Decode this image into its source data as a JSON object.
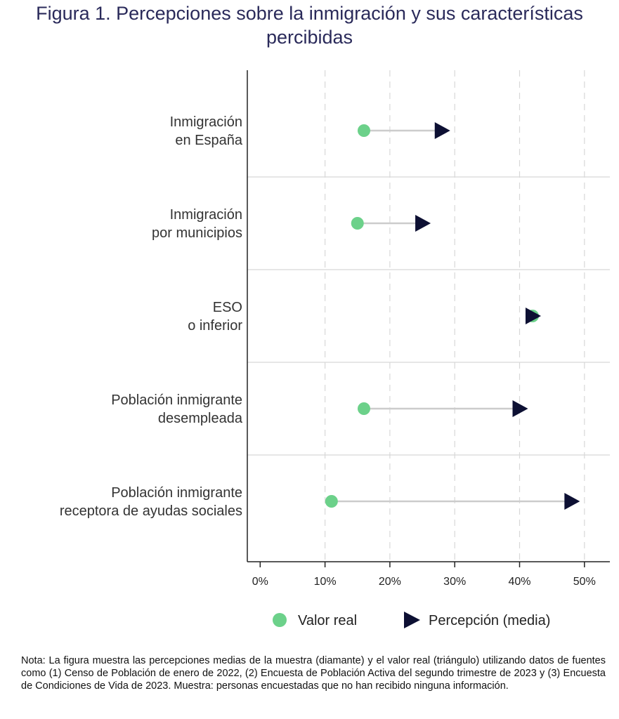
{
  "title": "Figura 1. Percepciones sobre la inmigración y sus características percibidas",
  "note": "Nota: La figura muestra las percepciones medias de la muestra (diamante) y el valor real (triángulo) utilizando datos de fuentes como (1) Censo de Población de enero de 2022, (2) Encuesta de Población Activa del segundo trimestre de 2023 y (3) Encuesta de Condiciones de Vida de 2023. Muestra: personas encuestadas que no han recibido ninguna información.",
  "colors": {
    "real": "#6cd18a",
    "perception": "#0d1033",
    "connector": "#cccccc",
    "title": "#2a2a5a"
  },
  "chart_data": {
    "type": "dumbbell",
    "title": "Figura 1. Percepciones sobre la inmigración y sus características percibidas",
    "xlabel": "",
    "ylabel": "",
    "xlim": [
      0,
      50
    ],
    "xticks": [
      0,
      10,
      20,
      30,
      40,
      50
    ],
    "xtick_labels": [
      "0%",
      "10%",
      "20%",
      "30%",
      "40%",
      "50%"
    ],
    "grid": "vertical dashed",
    "legend_position": "bottom",
    "categories": [
      [
        "Inmigración",
        "en España"
      ],
      [
        "Inmigración",
        "por municipios"
      ],
      [
        "ESO",
        "o inferior"
      ],
      [
        "Población inmigrante",
        "desempleada"
      ],
      [
        "Población inmigrante",
        "receptora de ayudas sociales"
      ]
    ],
    "series": [
      {
        "name": "Valor real",
        "marker": "circle",
        "values": [
          16,
          15,
          42,
          16,
          11
        ]
      },
      {
        "name": "Percepción (media)",
        "marker": "triangle-right",
        "values": [
          28,
          25,
          42,
          40,
          48
        ]
      }
    ]
  }
}
